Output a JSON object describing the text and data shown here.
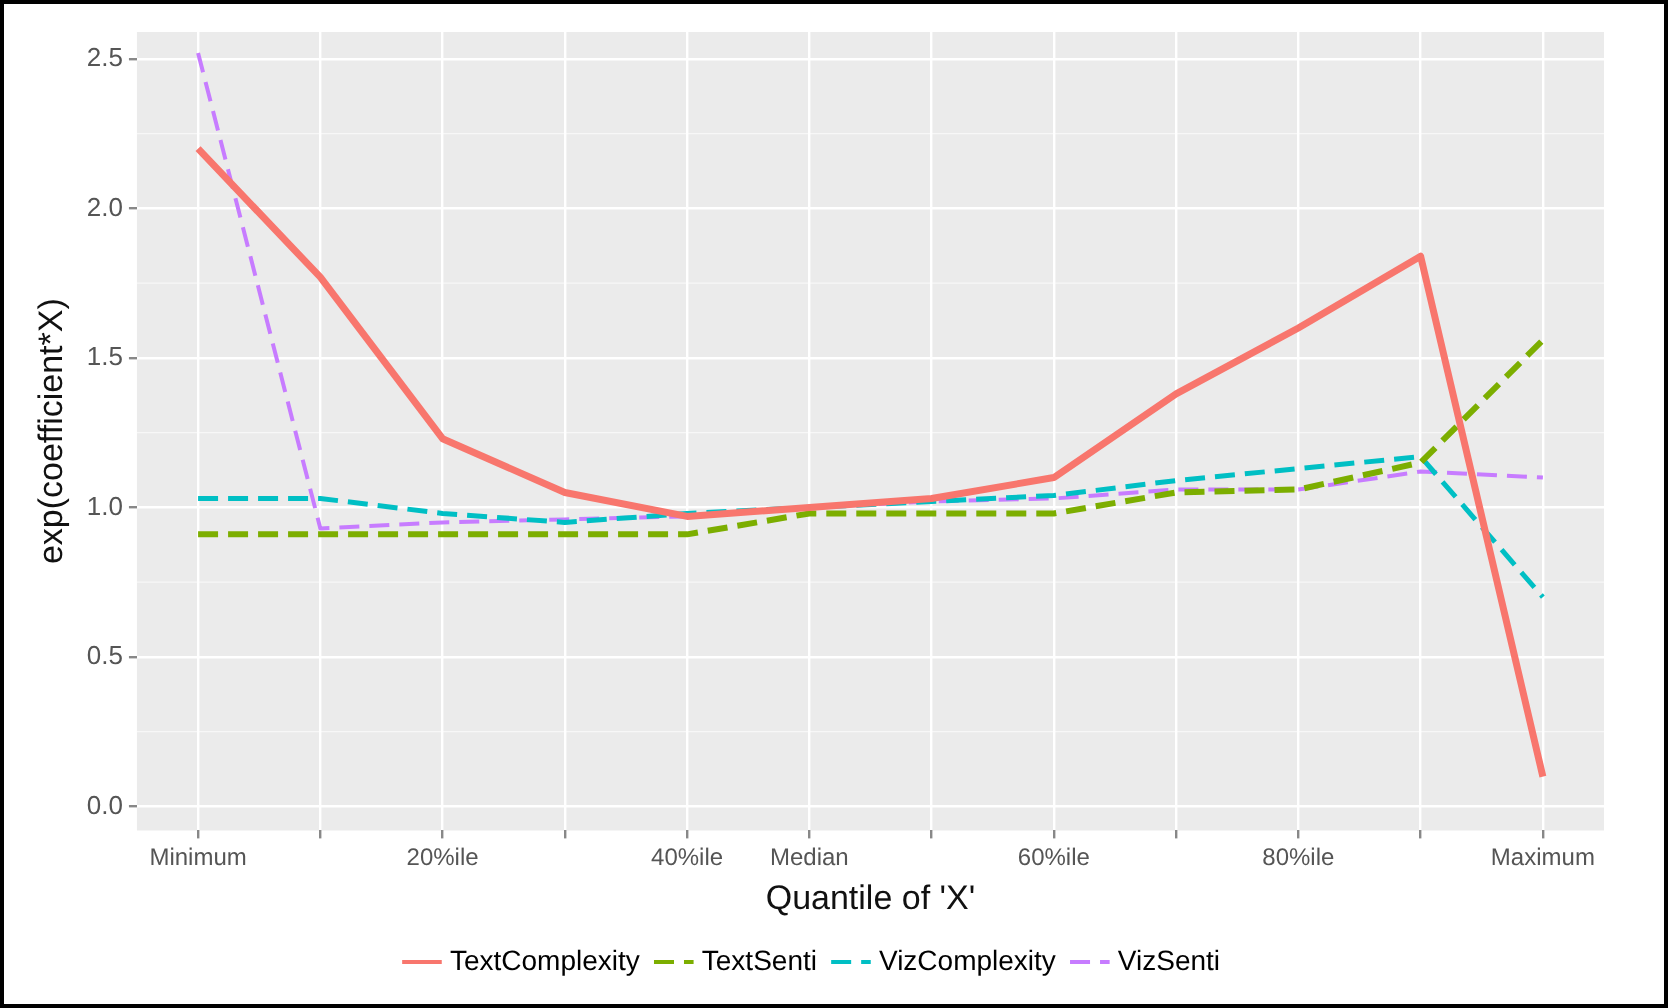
{
  "chart_data": {
    "type": "line",
    "xlabel": "Quantile of 'X'",
    "ylabel": "exp(coefficient*X)",
    "categories": [
      "Minimum",
      null,
      "20%ile",
      null,
      "40%ile",
      "Median",
      null,
      "60%ile",
      null,
      "80%ile",
      null,
      "Maximum"
    ],
    "series": [
      {
        "name": "TextComplexity",
        "color": "#f8766d",
        "line_style": "solid",
        "values": [
          2.2,
          1.77,
          1.23,
          1.05,
          0.97,
          1.0,
          1.03,
          1.1,
          1.38,
          1.6,
          1.84,
          0.1
        ]
      },
      {
        "name": "TextSenti",
        "color": "#7cae00",
        "line_style": "dashed",
        "values": [
          0.91,
          0.91,
          0.91,
          0.91,
          0.91,
          0.98,
          0.98,
          0.98,
          1.05,
          1.06,
          1.15,
          1.56
        ]
      },
      {
        "name": "VizComplexity",
        "color": "#00bfc4",
        "line_style": "dashed",
        "values": [
          1.03,
          1.03,
          0.98,
          0.95,
          0.98,
          1.0,
          1.02,
          1.04,
          1.09,
          1.13,
          1.17,
          0.7
        ]
      },
      {
        "name": "VizSenti",
        "color": "#c77cff",
        "line_style": "dashed",
        "values": [
          2.52,
          0.93,
          0.95,
          0.96,
          0.97,
          1.0,
          1.02,
          1.03,
          1.06,
          1.06,
          1.12,
          1.1
        ]
      }
    ],
    "ylim": [
      -0.08,
      2.59
    ],
    "yticks": [
      {
        "value": 0,
        "label": "0.0"
      },
      {
        "value": 0.5,
        "label": "0.5"
      },
      {
        "value": 1,
        "label": "1.0"
      },
      {
        "value": 1.5,
        "label": "1.5"
      },
      {
        "value": 2,
        "label": "2.0"
      },
      {
        "value": 2.5,
        "label": "2.5"
      }
    ],
    "grid": true,
    "legend": "bottom",
    "marker": "none"
  }
}
